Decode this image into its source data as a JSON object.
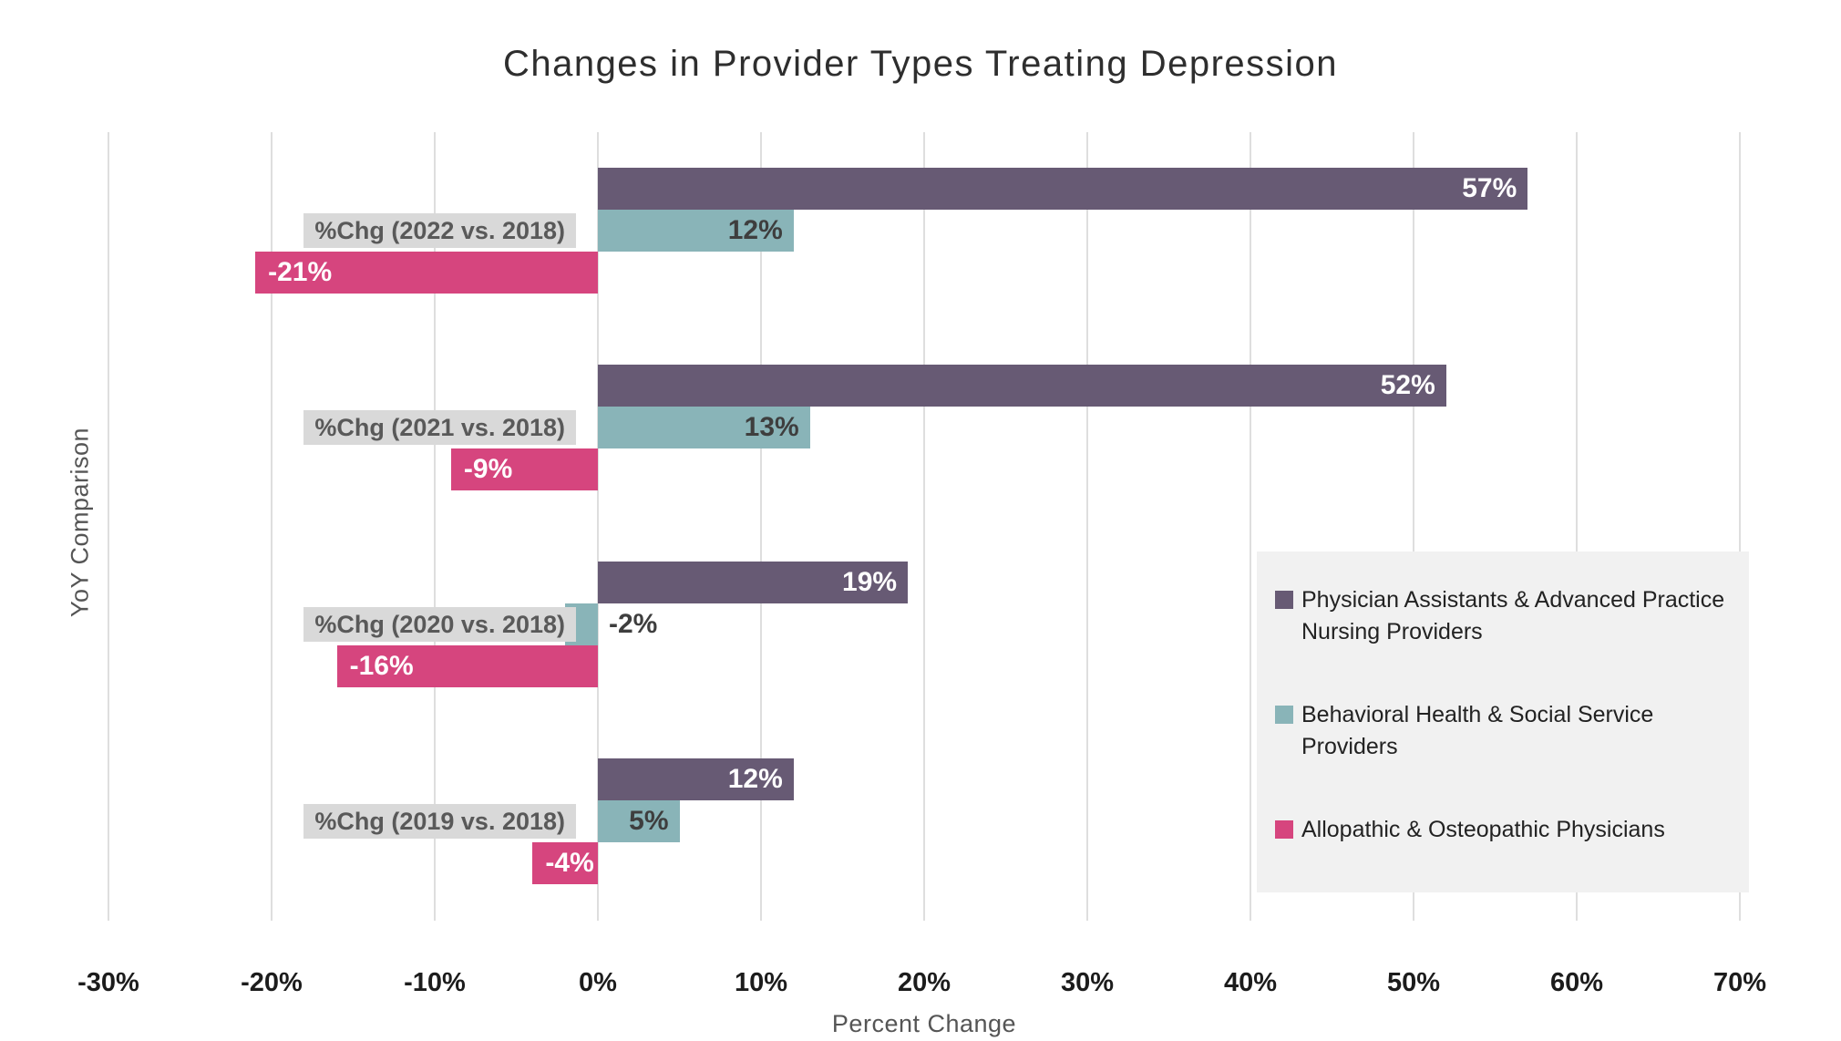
{
  "chart_data": {
    "type": "bar",
    "orientation": "horizontal",
    "title": "Changes in Provider Types Treating Depression",
    "xlabel": "Percent Change",
    "ylabel": "YoY Comparison",
    "xlim": [
      -30,
      70
    ],
    "tick_step": 10,
    "tick_labels": [
      "-30%",
      "-20%",
      "-10%",
      "0%",
      "10%",
      "20%",
      "30%",
      "40%",
      "50%",
      "60%",
      "70%"
    ],
    "grid": true,
    "legend_position": "right-inside",
    "categories": [
      "%Chg (2022 vs. 2018)",
      "%Chg (2021 vs. 2018)",
      "%Chg (2020 vs. 2018)",
      "%Chg (2019 vs. 2018)"
    ],
    "series": [
      {
        "name": "Physician Assistants & Advanced Practice Nursing Providers",
        "color": "#675a74",
        "values": [
          57,
          52,
          19,
          12
        ]
      },
      {
        "name": "Behavioral Health & Social Service Providers",
        "color": "#89b4b8",
        "values": [
          12,
          13,
          -2,
          5
        ]
      },
      {
        "name": "Allopathic & Osteopathic Physicians",
        "color": "#d6457e",
        "values": [
          -21,
          -9,
          -16,
          -4
        ]
      }
    ],
    "value_label_format": "{v}%"
  },
  "colors": {
    "category_label_bg": "#d9d9d9",
    "category_label_text": "#595959",
    "legend_bg": "#f1f1f1",
    "gridline": "#dedede",
    "value_label_light": "#ffffff",
    "value_label_dark": "#3e3e3e",
    "tick_text": "#1c1c1c",
    "title_text": "#2e2e2e",
    "axis_title_text": "#555555"
  }
}
